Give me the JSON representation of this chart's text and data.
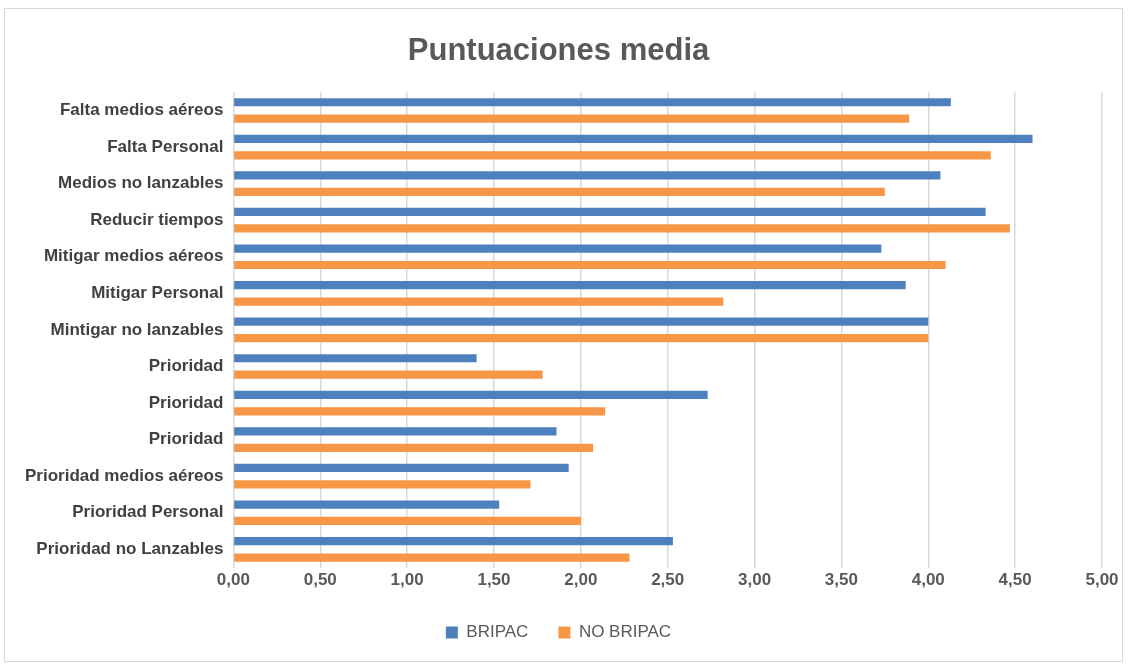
{
  "chart_data": {
    "type": "bar",
    "orientation": "horizontal",
    "title": "Puntuaciones media",
    "categories": [
      "Falta medios aéreos",
      "Falta Personal",
      "Medios no lanzables",
      "Reducir tiempos",
      "Mitigar medios aéreos",
      "Mitigar Personal",
      "Mintigar no lanzables",
      "Prioridad",
      "Prioridad",
      "Prioridad",
      "Prioridad medios aéreos",
      "Prioridad Personal",
      "Prioridad no Lanzables"
    ],
    "series": [
      {
        "name": "BRIPAC",
        "color": "#4e80bd",
        "values": [
          4.13,
          4.6,
          4.07,
          4.33,
          3.73,
          3.87,
          4.0,
          1.4,
          2.73,
          1.86,
          1.93,
          1.53,
          2.53
        ]
      },
      {
        "name": "NO BRIPAC",
        "color": "#f79646",
        "values": [
          3.89,
          4.36,
          3.75,
          4.47,
          4.1,
          2.82,
          4.0,
          1.78,
          2.14,
          2.07,
          1.71,
          2.0,
          2.28
        ]
      }
    ],
    "xlim": [
      0,
      5
    ],
    "xticks": [
      {
        "value": 0,
        "label": "0,00"
      },
      {
        "value": 0.5,
        "label": "0,50"
      },
      {
        "value": 1,
        "label": "1,00"
      },
      {
        "value": 1.5,
        "label": "1,50"
      },
      {
        "value": 2,
        "label": "2,00"
      },
      {
        "value": 2.5,
        "label": "2,50"
      },
      {
        "value": 3,
        "label": "3,00"
      },
      {
        "value": 3.5,
        "label": "3,50"
      },
      {
        "value": 4,
        "label": "4,00"
      },
      {
        "value": 4.5,
        "label": "4,50"
      },
      {
        "value": 5,
        "label": "5,00"
      }
    ],
    "grid": "x",
    "legend": "bottom"
  }
}
